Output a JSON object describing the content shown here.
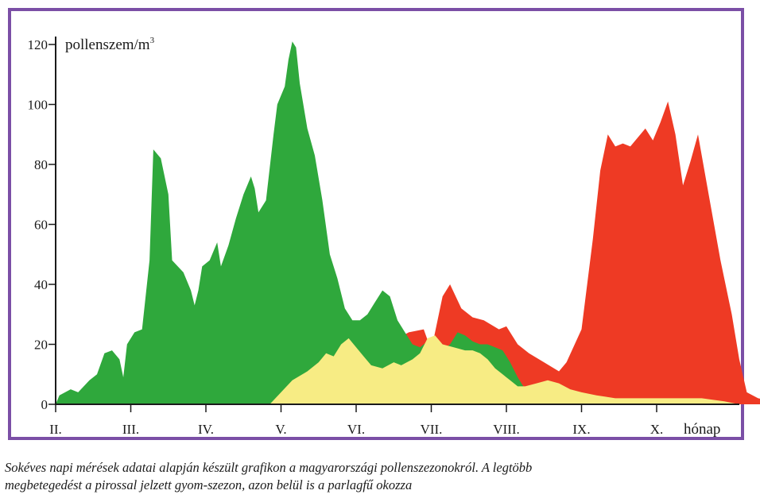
{
  "chart_data": {
    "type": "area",
    "title": "",
    "ylabel": "pollenszem/m",
    "ylabel_superscript": "3",
    "xlabel": "hónap",
    "ylim": [
      0,
      120
    ],
    "yticks": [
      "0",
      "20",
      "40",
      "60",
      "80",
      "100",
      "120"
    ],
    "xlim": [
      0,
      9.5
    ],
    "month_labels": [
      "II.",
      "III.",
      "IV.",
      "V.",
      "VI.",
      "VII.",
      "VIII.",
      "IX.",
      "X."
    ],
    "grid": false,
    "legend": "none",
    "series": [
      {
        "key": "weed_red",
        "color": "#ee3a24",
        "points": [
          [
            3.95,
            0
          ],
          [
            4.1,
            12
          ],
          [
            4.4,
            20
          ],
          [
            4.7,
            24
          ],
          [
            4.9,
            25
          ],
          [
            5.0,
            18
          ],
          [
            5.15,
            36
          ],
          [
            5.25,
            40
          ],
          [
            5.4,
            32
          ],
          [
            5.55,
            29
          ],
          [
            5.7,
            28
          ],
          [
            5.9,
            25
          ],
          [
            6.0,
            26
          ],
          [
            6.15,
            20
          ],
          [
            6.3,
            17
          ],
          [
            6.5,
            14
          ],
          [
            6.7,
            11
          ],
          [
            6.8,
            14
          ],
          [
            7.0,
            25
          ],
          [
            7.15,
            55
          ],
          [
            7.25,
            78
          ],
          [
            7.35,
            90
          ],
          [
            7.45,
            86
          ],
          [
            7.55,
            87
          ],
          [
            7.65,
            86
          ],
          [
            7.75,
            89
          ],
          [
            7.85,
            92
          ],
          [
            7.95,
            88
          ],
          [
            8.05,
            94
          ],
          [
            8.15,
            101
          ],
          [
            8.25,
            90
          ],
          [
            8.35,
            73
          ],
          [
            8.45,
            81
          ],
          [
            8.55,
            90
          ],
          [
            8.7,
            69
          ],
          [
            8.85,
            48
          ],
          [
            9.0,
            30
          ],
          [
            9.1,
            15
          ],
          [
            9.2,
            4
          ],
          [
            9.35,
            2
          ],
          [
            9.55,
            1
          ],
          [
            9.7,
            2
          ],
          [
            9.85,
            0
          ]
        ]
      },
      {
        "key": "tree_green",
        "color": "#2fa83c",
        "points": [
          [
            0,
            0
          ],
          [
            0.05,
            3
          ],
          [
            0.2,
            5
          ],
          [
            0.3,
            4
          ],
          [
            0.45,
            8
          ],
          [
            0.55,
            10
          ],
          [
            0.65,
            17
          ],
          [
            0.75,
            18
          ],
          [
            0.85,
            15
          ],
          [
            0.9,
            9
          ],
          [
            0.95,
            20
          ],
          [
            1.05,
            24
          ],
          [
            1.15,
            25
          ],
          [
            1.25,
            48
          ],
          [
            1.3,
            85
          ],
          [
            1.4,
            82
          ],
          [
            1.5,
            70
          ],
          [
            1.55,
            48
          ],
          [
            1.7,
            44
          ],
          [
            1.8,
            38
          ],
          [
            1.85,
            33
          ],
          [
            1.9,
            38
          ],
          [
            1.95,
            46
          ],
          [
            2.05,
            48
          ],
          [
            2.15,
            54
          ],
          [
            2.2,
            46
          ],
          [
            2.3,
            53
          ],
          [
            2.4,
            62
          ],
          [
            2.5,
            70
          ],
          [
            2.6,
            76
          ],
          [
            2.65,
            72
          ],
          [
            2.7,
            64
          ],
          [
            2.8,
            68
          ],
          [
            2.9,
            90
          ],
          [
            2.95,
            100
          ],
          [
            3.05,
            106
          ],
          [
            3.1,
            115
          ],
          [
            3.15,
            121
          ],
          [
            3.2,
            119
          ],
          [
            3.25,
            107
          ],
          [
            3.35,
            92
          ],
          [
            3.45,
            83
          ],
          [
            3.55,
            68
          ],
          [
            3.65,
            50
          ],
          [
            3.75,
            42
          ],
          [
            3.85,
            32
          ],
          [
            3.95,
            28
          ],
          [
            4.05,
            28
          ],
          [
            4.15,
            30
          ],
          [
            4.25,
            34
          ],
          [
            4.35,
            38
          ],
          [
            4.45,
            36
          ],
          [
            4.55,
            28
          ],
          [
            4.65,
            24
          ],
          [
            4.75,
            20
          ],
          [
            4.85,
            19
          ],
          [
            4.95,
            21
          ],
          [
            5.05,
            18
          ],
          [
            5.15,
            18
          ],
          [
            5.25,
            20
          ],
          [
            5.35,
            24
          ],
          [
            5.45,
            23
          ],
          [
            5.55,
            21
          ],
          [
            5.65,
            20
          ],
          [
            5.75,
            20
          ],
          [
            5.85,
            19
          ],
          [
            5.95,
            18
          ],
          [
            6.05,
            14
          ],
          [
            6.15,
            9
          ],
          [
            6.25,
            5
          ],
          [
            6.35,
            4
          ],
          [
            6.5,
            4
          ],
          [
            6.7,
            5
          ]
        ]
      },
      {
        "key": "grass_yellow",
        "color": "#f7ec84",
        "points": [
          [
            2.85,
            0
          ],
          [
            3.0,
            4
          ],
          [
            3.15,
            8
          ],
          [
            3.35,
            11
          ],
          [
            3.5,
            14
          ],
          [
            3.6,
            17
          ],
          [
            3.7,
            16
          ],
          [
            3.8,
            20
          ],
          [
            3.9,
            22
          ],
          [
            4.0,
            19
          ],
          [
            4.1,
            16
          ],
          [
            4.2,
            13
          ],
          [
            4.35,
            12
          ],
          [
            4.5,
            14
          ],
          [
            4.6,
            13
          ],
          [
            4.75,
            15
          ],
          [
            4.85,
            17
          ],
          [
            4.95,
            22
          ],
          [
            5.05,
            23
          ],
          [
            5.15,
            20
          ],
          [
            5.3,
            19
          ],
          [
            5.45,
            18
          ],
          [
            5.55,
            18
          ],
          [
            5.65,
            17
          ],
          [
            5.75,
            15
          ],
          [
            5.85,
            12
          ],
          [
            5.95,
            10
          ],
          [
            6.05,
            8
          ],
          [
            6.15,
            6
          ],
          [
            6.25,
            6
          ],
          [
            6.4,
            7
          ],
          [
            6.55,
            8
          ],
          [
            6.7,
            7
          ],
          [
            6.85,
            5
          ],
          [
            7.0,
            4
          ],
          [
            7.2,
            3
          ],
          [
            7.45,
            2
          ],
          [
            7.7,
            2
          ],
          [
            8.0,
            2
          ],
          [
            8.3,
            2
          ],
          [
            8.6,
            2
          ],
          [
            8.9,
            1
          ],
          [
            9.1,
            0
          ]
        ]
      }
    ]
  },
  "caption": {
    "line1": "Sokéves napi mérések adatai alapján készült grafikon a magyarországi pollenszezonokról. A legtöbb",
    "line2": "megbetegedést a pirossal jelzett gyom-szezon, azon belül is a parlagfű okozza"
  }
}
